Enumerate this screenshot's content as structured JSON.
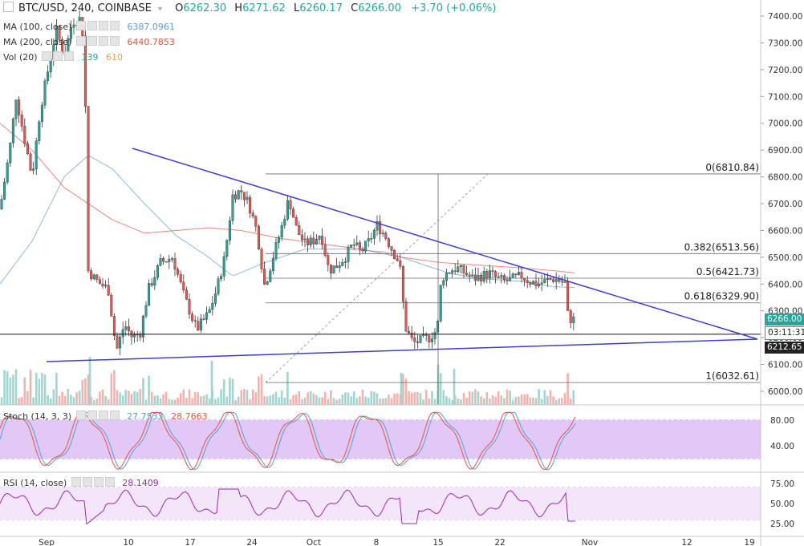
{
  "header": {
    "symbol": "BTC/USD, 240, COINBASE",
    "open_label": "O",
    "open": "6262.30",
    "high_label": "H",
    "high": "6271.62",
    "low_label": "L",
    "low": "6260.17",
    "close_label": "C",
    "close": "6266.00",
    "change": "+3.70 (+0.06%)"
  },
  "legends": {
    "ma100_label": "MA (100, close)",
    "ma100_value": "6387.0961",
    "ma200_label": "MA (200, close)",
    "ma200_value": "6440.7853",
    "vol_label": "Vol (20)",
    "vol_value1": "139",
    "vol_value2": "610",
    "stoch_label": "Stoch (14, 3, 3)",
    "stoch_k": "27.7533",
    "stoch_d": "28.7663",
    "rsi_label": "RSI (14, close)",
    "rsi_value": "28.1409"
  },
  "price_tags": {
    "last": "6266.00",
    "countdown": "03:11:31",
    "line": "6212.65"
  },
  "colors": {
    "up": "#26a69a",
    "down": "#ef5350",
    "ma100": "#5b9bd5",
    "ma200": "#e5533d",
    "trend": "#3d3dd8",
    "stoch_k": "#5b9bd5",
    "stoch_d": "#e5533d",
    "rsi": "#9c27b0",
    "stoch_band": "#e1c8f7",
    "rsi_band": "#f3e6fb"
  },
  "chart_data": {
    "type": "candlestick",
    "x_ticks": [
      "Sep",
      "10",
      "17",
      "24",
      "Oct",
      "8",
      "15",
      "22",
      "Nov",
      "12",
      "19"
    ],
    "y_ticks": [
      7400,
      7300,
      7200,
      7100,
      7000,
      6900,
      6800,
      6700,
      6600,
      6500,
      6400,
      6300,
      6200,
      6100,
      6000
    ],
    "ylim": [
      5975,
      7440
    ],
    "fib_levels": [
      {
        "label": "0(6810.84)",
        "value": 6810.84
      },
      {
        "label": "0.382(6513.56)",
        "value": 6513.56
      },
      {
        "label": "0.5(6421.73)",
        "value": 6421.73
      },
      {
        "label": "0.618(6329.90)",
        "value": 6329.9
      },
      {
        "label": "1(6032.61)",
        "value": 6032.61
      }
    ],
    "horizontal_line": 6212.65,
    "stoch_ticks": [
      80,
      40
    ],
    "stoch_band": [
      20,
      80
    ],
    "rsi_ticks": [
      75,
      50,
      25
    ],
    "rsi_band": [
      30,
      70
    ],
    "price_waypoints": [
      [
        0,
        6680
      ],
      [
        12,
        6900
      ],
      [
        20,
        7100
      ],
      [
        30,
        6950
      ],
      [
        40,
        6800
      ],
      [
        50,
        7050
      ],
      [
        60,
        7200
      ],
      [
        70,
        7350
      ],
      [
        80,
        7250
      ],
      [
        90,
        7380
      ],
      [
        100,
        7390
      ],
      [
        105,
        7300
      ],
      [
        110,
        6450
      ],
      [
        118,
        6420
      ],
      [
        125,
        6400
      ],
      [
        135,
        6380
      ],
      [
        145,
        6150
      ],
      [
        155,
        6250
      ],
      [
        165,
        6200
      ],
      [
        175,
        6220
      ],
      [
        185,
        6380
      ],
      [
        200,
        6480
      ],
      [
        215,
        6500
      ],
      [
        230,
        6350
      ],
      [
        245,
        6230
      ],
      [
        260,
        6290
      ],
      [
        270,
        6380
      ],
      [
        280,
        6500
      ],
      [
        290,
        6730
      ],
      [
        300,
        6750
      ],
      [
        310,
        6700
      ],
      [
        320,
        6600
      ],
      [
        330,
        6390
      ],
      [
        340,
        6500
      ],
      [
        350,
        6600
      ],
      [
        360,
        6720
      ],
      [
        370,
        6600
      ],
      [
        380,
        6550
      ],
      [
        390,
        6560
      ],
      [
        400,
        6590
      ],
      [
        410,
        6450
      ],
      [
        420,
        6470
      ],
      [
        430,
        6500
      ],
      [
        440,
        6550
      ],
      [
        450,
        6520
      ],
      [
        460,
        6560
      ],
      [
        470,
        6620
      ],
      [
        480,
        6580
      ],
      [
        490,
        6520
      ],
      [
        498,
        6480
      ],
      [
        505,
        6240
      ],
      [
        515,
        6180
      ],
      [
        525,
        6190
      ],
      [
        535,
        6200
      ],
      [
        545,
        6230
      ],
      [
        550,
        6420
      ],
      [
        560,
        6450
      ],
      [
        570,
        6460
      ],
      [
        580,
        6440
      ],
      [
        590,
        6420
      ],
      [
        600,
        6430
      ],
      [
        610,
        6440
      ],
      [
        620,
        6420
      ],
      [
        630,
        6410
      ],
      [
        640,
        6420
      ],
      [
        650,
        6430
      ],
      [
        660,
        6410
      ],
      [
        670,
        6400
      ],
      [
        680,
        6410
      ],
      [
        690,
        6420
      ],
      [
        700,
        6410
      ],
      [
        705,
        6400
      ],
      [
        708,
        6270
      ],
      [
        713,
        6270
      ],
      [
        718,
        6266
      ]
    ],
    "ma100_waypoints": [
      [
        0,
        6400
      ],
      [
        40,
        6560
      ],
      [
        80,
        6800
      ],
      [
        110,
        6880
      ],
      [
        140,
        6830
      ],
      [
        180,
        6700
      ],
      [
        220,
        6580
      ],
      [
        260,
        6500
      ],
      [
        290,
        6430
      ],
      [
        330,
        6480
      ],
      [
        380,
        6530
      ],
      [
        430,
        6530
      ],
      [
        480,
        6520
      ],
      [
        530,
        6470
      ],
      [
        560,
        6440
      ],
      [
        600,
        6420
      ],
      [
        650,
        6410
      ],
      [
        690,
        6390
      ],
      [
        718,
        6387
      ]
    ],
    "ma200_waypoints": [
      [
        0,
        7000
      ],
      [
        40,
        6900
      ],
      [
        80,
        6760
      ],
      [
        110,
        6700
      ],
      [
        140,
        6640
      ],
      [
        180,
        6590
      ],
      [
        220,
        6600
      ],
      [
        260,
        6610
      ],
      [
        300,
        6600
      ],
      [
        350,
        6570
      ],
      [
        400,
        6550
      ],
      [
        450,
        6530
      ],
      [
        500,
        6500
      ],
      [
        550,
        6480
      ],
      [
        600,
        6470
      ],
      [
        650,
        6460
      ],
      [
        690,
        6450
      ],
      [
        718,
        6441
      ]
    ]
  }
}
